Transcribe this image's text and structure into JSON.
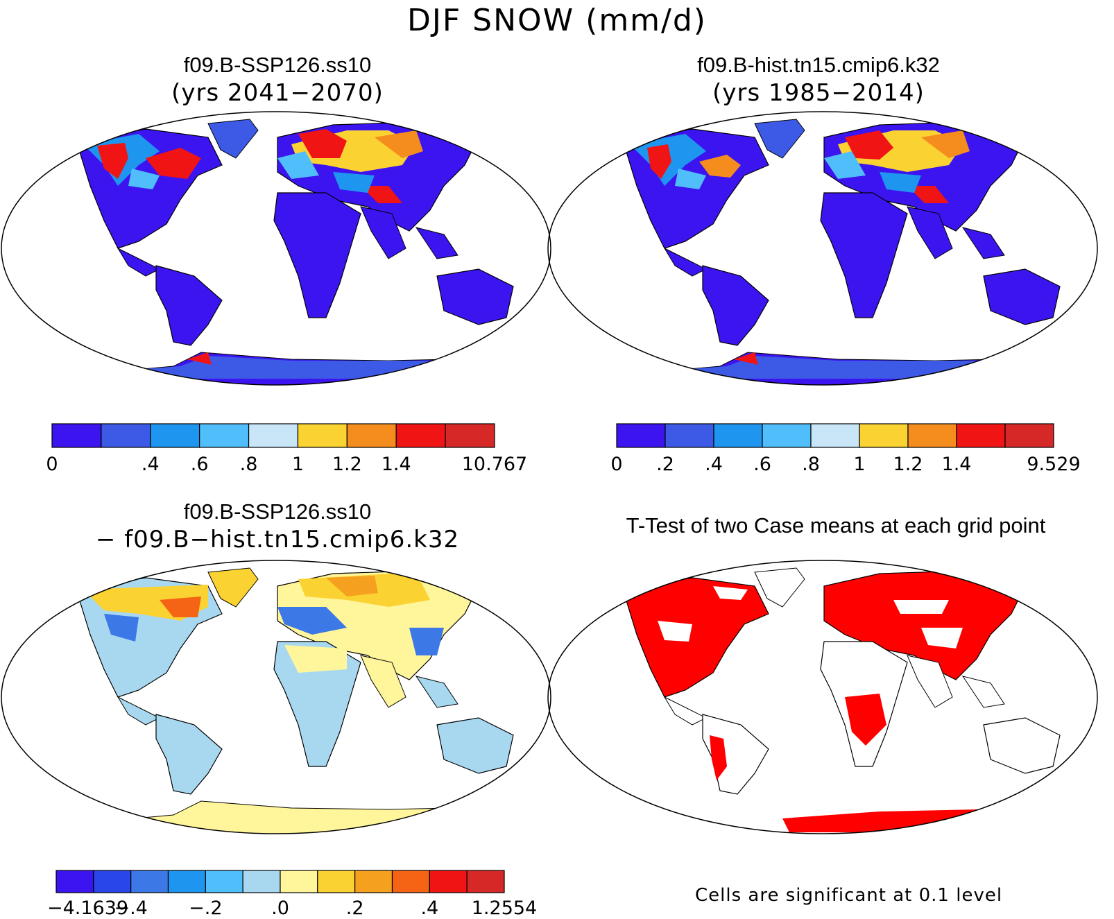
{
  "title": "DJF SNOW (mm/d)",
  "panels": [
    {
      "id": "future",
      "title": "f09.B-SSP126.ss10",
      "subtitle": "(yrs 2041−2070)",
      "colorbar": {
        "colors": [
          "#3c14f0",
          "#3c5ae6",
          "#1e96f0",
          "#50befa",
          "#c8e6f8",
          "#fad232",
          "#f58c1e",
          "#f01414",
          "#d72828"
        ],
        "labels": [
          "0",
          ".4",
          ".6",
          ".8",
          "1",
          "1.2",
          "1.4",
          "10.767"
        ],
        "label_slots": [
          0,
          2,
          3,
          4,
          5,
          6,
          7,
          9
        ]
      }
    },
    {
      "id": "historical",
      "title": "f09.B-hist.tn15.cmip6.k32",
      "subtitle": "(yrs 1985−2014)",
      "colorbar": {
        "colors": [
          "#3c14f0",
          "#3c5ae6",
          "#1e96f0",
          "#50befa",
          "#c8e6f8",
          "#fad232",
          "#f58c1e",
          "#f01414",
          "#d72828"
        ],
        "labels": [
          "0",
          ".2",
          ".4",
          ".6",
          ".8",
          "1",
          "1.2",
          "1.4",
          "9.529"
        ],
        "label_slots": [
          0,
          1,
          2,
          3,
          4,
          5,
          6,
          7,
          9
        ]
      }
    },
    {
      "id": "difference",
      "title": "f09.B-SSP126.ss10",
      "subtitle": "− f09.B−hist.tn15.cmip6.k32",
      "colorbar": {
        "colors": [
          "#3c14f0",
          "#2846ea",
          "#3c78e6",
          "#1e96f0",
          "#50befa",
          "#a8d8f0",
          "#fff59b",
          "#fad232",
          "#f5a01e",
          "#f56414",
          "#f01414",
          "#d72828"
        ],
        "labels": [
          "−4.1639",
          "−.4",
          "−.2",
          ".0",
          ".2",
          ".4",
          "1.2554"
        ],
        "label_slots": [
          0,
          2,
          4,
          6,
          8,
          10,
          12
        ]
      }
    },
    {
      "id": "ttest",
      "title": "T-Test of two Case means at each grid point",
      "note": "Cells are significant at 0.1 level"
    }
  ]
}
